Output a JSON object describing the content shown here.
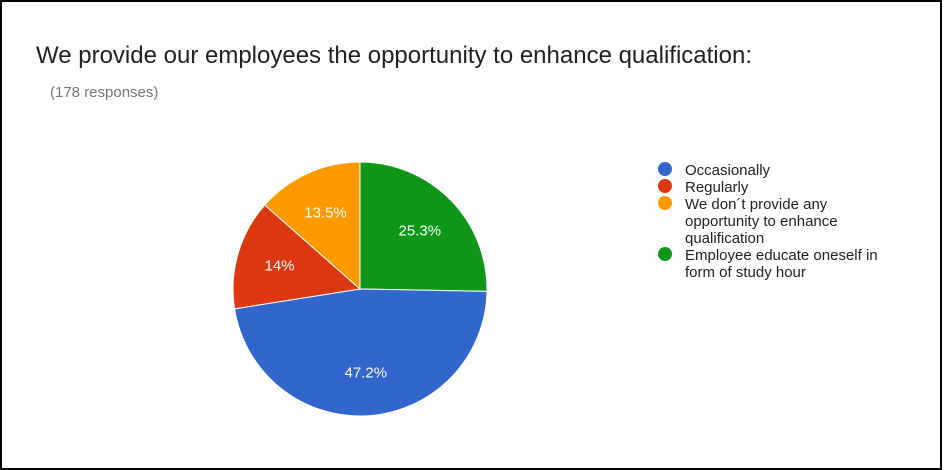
{
  "title": "We provide our employees the opportunity to enhance qualification:",
  "subtitle": "(178 responses)",
  "chart_data": {
    "type": "pie",
    "slices": [
      {
        "label": "Occasionally",
        "value": 47.2,
        "display": "47.2%",
        "color": "#3366cc"
      },
      {
        "label": "Regularly",
        "value": 14.0,
        "display": "14%",
        "color": "#dc3912"
      },
      {
        "label": "We don´t provide any opportunity to enhance qualification",
        "value": 13.5,
        "display": "13.5%",
        "color": "#ff9900"
      },
      {
        "label": "Employee educate oneself in form of study hour",
        "value": 25.3,
        "display": "25.3%",
        "color": "#109618"
      }
    ],
    "legend_position": "right"
  }
}
